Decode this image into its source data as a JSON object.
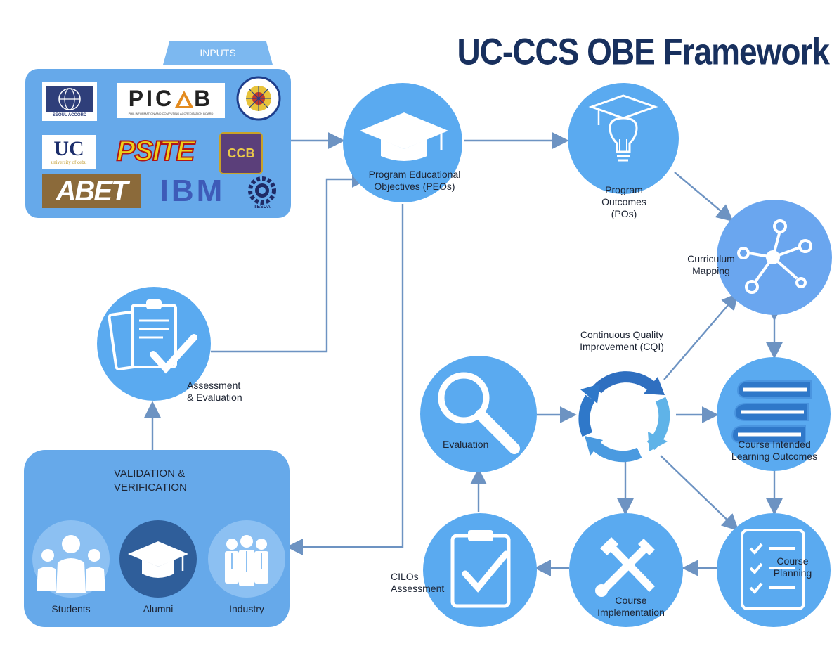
{
  "title": "UC-CCS OBE Framework",
  "inputs": {
    "tab_label": "INPUTS",
    "logos": [
      {
        "name": "seoul-accord-logo",
        "text": "SEOUL ACCORD"
      },
      {
        "name": "picab-logo",
        "text": "PIC",
        "text2": "B",
        "subtitle": "PHIL INFORMATION AND COMPUTING ACCREDITATION BOARD"
      },
      {
        "name": "ched-seal",
        "text": ""
      },
      {
        "name": "uc-logo",
        "text": "UC",
        "subtitle": "university of cebu"
      },
      {
        "name": "psite-logo",
        "text": "PSITE"
      },
      {
        "name": "ccb-logo",
        "text": "CCB"
      },
      {
        "name": "abet-logo",
        "text": "ABET"
      },
      {
        "name": "ibm-logo",
        "text": "IBM"
      },
      {
        "name": "tesda-logo",
        "text": "TESDA"
      }
    ]
  },
  "nodes": {
    "peo": {
      "label": "Program Educational\nObjectives (PEOs)",
      "icon": "graduation-cap-icon"
    },
    "po": {
      "label": "Program\nOutcomes\n(POs)",
      "icon": "lightbulb-cap-icon"
    },
    "curriculum": {
      "label": "Curriculum\nMapping",
      "icon": "network-hub-icon"
    },
    "cilo": {
      "label": "Course Intended\nLearning Outcomes",
      "icon": "books-icon"
    },
    "planning": {
      "label": "Course\nPlanning",
      "icon": "checklist-icon"
    },
    "implementation": {
      "label": "Course\nImplementation",
      "icon": "tools-icon"
    },
    "cilos_assessment": {
      "label": "CILOs\nAssessment",
      "icon": "clipboard-check-icon"
    },
    "evaluation": {
      "label": "Evaluation",
      "icon": "magnifier-icon"
    },
    "cqi": {
      "label": "Continuous Quality\nImprovement (CQI)",
      "icon": "cycle-arrows-icon"
    },
    "assessment": {
      "label": "Assessment\n& Evaluation",
      "icon": "documents-check-icon"
    }
  },
  "validation": {
    "title": "VALIDATION &\nVERIFICATION",
    "items": [
      {
        "label": "Students",
        "icon": "students-icon"
      },
      {
        "label": "Alumni",
        "icon": "graduation-cap-icon"
      },
      {
        "label": "Industry",
        "icon": "industry-people-icon"
      }
    ]
  },
  "colors": {
    "title": "#18305e",
    "node": "#5aaaf0",
    "panel": "#66a9ea",
    "arrow": "#6d93c2"
  }
}
